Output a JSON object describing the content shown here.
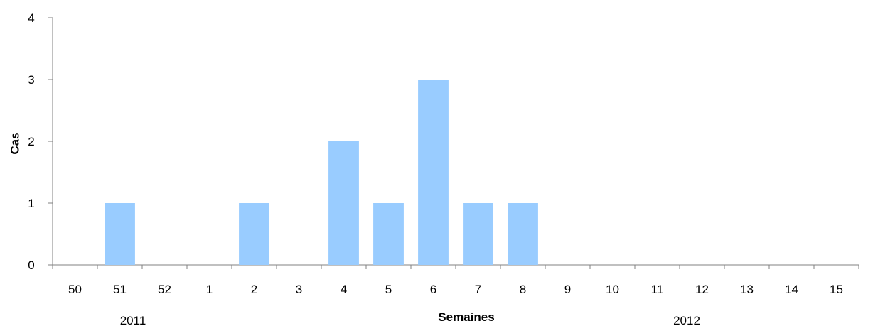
{
  "chart_data": {
    "type": "bar",
    "title": "",
    "xlabel": "Semaines",
    "ylabel": "Cas",
    "categories": [
      "50",
      "51",
      "52",
      "1",
      "2",
      "3",
      "4",
      "5",
      "6",
      "7",
      "8",
      "9",
      "10",
      "11",
      "12",
      "13",
      "14",
      "15"
    ],
    "values": [
      0,
      1,
      0,
      0,
      1,
      0,
      2,
      1,
      3,
      1,
      1,
      0,
      0,
      0,
      0,
      0,
      0,
      0
    ],
    "ylim": [
      0,
      4
    ],
    "yticks": [
      "0",
      "1",
      "2",
      "3",
      "4"
    ],
    "year_labels": [
      "2011",
      "2012"
    ],
    "bar_color": "#99CCFF",
    "grid": false,
    "legend": "none"
  }
}
